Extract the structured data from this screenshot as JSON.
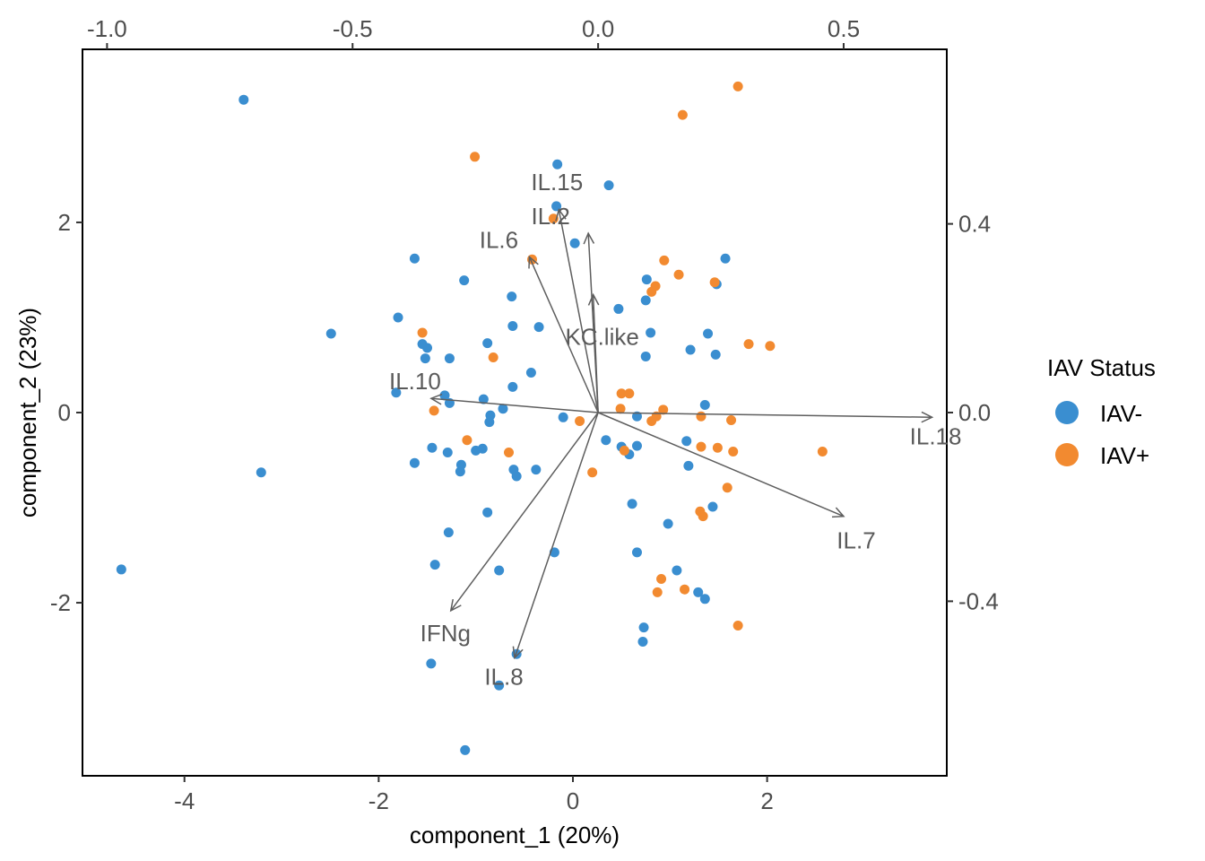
{
  "chart_data": {
    "type": "scatter",
    "xlabel": "component_1   (20%)",
    "ylabel": "component_2   (23%)",
    "xlim": [
      -5.05,
      3.85
    ],
    "ylim": [
      -3.82,
      3.82
    ],
    "x_ticks": [
      -4,
      -2,
      0,
      2
    ],
    "y_ticks": [
      -2,
      0,
      2
    ],
    "top_axis": {
      "xlim": [
        -1.05,
        0.71
      ],
      "ticks": [
        -1.0,
        -0.5,
        0.0,
        0.5
      ],
      "tick_labels": [
        "-1.0",
        "-0.5",
        "0.0",
        "0.5"
      ]
    },
    "right_axis": {
      "ylim": [
        -0.77,
        0.77
      ],
      "ticks": [
        -0.4,
        0.0,
        0.4
      ],
      "tick_labels": [
        "-0.4",
        "0.0",
        "0.4"
      ]
    },
    "grid": false,
    "legend": {
      "title": "IAV Status",
      "position": "right",
      "entries": [
        {
          "label": "IAV-",
          "color": "#3a8ed0"
        },
        {
          "label": "IAV+",
          "color": "#f28a30"
        }
      ]
    },
    "series": [
      {
        "name": "IAV-",
        "color": "#3a8ed0",
        "points": [
          [
            -3.39,
            3.29
          ],
          [
            -4.65,
            -1.65
          ],
          [
            -3.21,
            -0.63
          ],
          [
            -2.49,
            0.83
          ],
          [
            -1.8,
            1.0
          ],
          [
            -1.63,
            1.62
          ],
          [
            -1.55,
            0.72
          ],
          [
            -1.5,
            0.68
          ],
          [
            -1.52,
            0.57
          ],
          [
            -1.27,
            0.57
          ],
          [
            -1.82,
            0.21
          ],
          [
            -1.32,
            0.18
          ],
          [
            -1.27,
            0.1
          ],
          [
            -1.12,
            1.39
          ],
          [
            -0.88,
            0.73
          ],
          [
            -0.63,
            1.22
          ],
          [
            -0.62,
            0.91
          ],
          [
            -0.35,
            0.9
          ],
          [
            -0.92,
            0.14
          ],
          [
            -0.62,
            0.27
          ],
          [
            -0.43,
            0.42
          ],
          [
            -0.85,
            -0.03
          ],
          [
            -0.72,
            0.04
          ],
          [
            -0.86,
            -0.1
          ],
          [
            -1.63,
            -0.53
          ],
          [
            -1.45,
            -0.37
          ],
          [
            -1.29,
            -0.42
          ],
          [
            -1.15,
            -0.55
          ],
          [
            -1.16,
            -0.62
          ],
          [
            -1.0,
            -0.4
          ],
          [
            -0.93,
            -0.38
          ],
          [
            -0.61,
            -0.6
          ],
          [
            -0.58,
            -0.67
          ],
          [
            -0.38,
            -0.6
          ],
          [
            -0.88,
            -1.05
          ],
          [
            -1.28,
            -1.26
          ],
          [
            -1.42,
            -1.6
          ],
          [
            -0.76,
            -1.66
          ],
          [
            -0.19,
            -1.47
          ],
          [
            -1.46,
            -2.64
          ],
          [
            -0.58,
            -2.54
          ],
          [
            -0.76,
            -2.87
          ],
          [
            -1.11,
            -3.55
          ],
          [
            -0.16,
            2.61
          ],
          [
            -0.17,
            2.17
          ],
          [
            0.02,
            1.78
          ],
          [
            0.37,
            2.39
          ],
          [
            0.47,
            1.09
          ],
          [
            0.76,
            1.4
          ],
          [
            0.75,
            1.18
          ],
          [
            0.8,
            0.84
          ],
          [
            0.75,
            0.59
          ],
          [
            1.21,
            0.66
          ],
          [
            1.39,
            0.83
          ],
          [
            1.57,
            1.62
          ],
          [
            1.48,
            1.35
          ],
          [
            1.47,
            0.61
          ],
          [
            1.36,
            0.08
          ],
          [
            -0.1,
            -0.05
          ],
          [
            0.34,
            -0.29
          ],
          [
            0.5,
            -0.36
          ],
          [
            0.58,
            -0.44
          ],
          [
            0.66,
            -0.35
          ],
          [
            0.66,
            -0.04
          ],
          [
            1.17,
            -0.3
          ],
          [
            1.19,
            -0.56
          ],
          [
            1.44,
            -0.99
          ],
          [
            0.61,
            -0.96
          ],
          [
            0.66,
            -1.47
          ],
          [
            0.98,
            -1.17
          ],
          [
            1.07,
            -1.66
          ],
          [
            1.29,
            -1.89
          ],
          [
            1.36,
            -1.96
          ],
          [
            0.73,
            -2.26
          ],
          [
            0.72,
            -2.41
          ]
        ]
      },
      {
        "name": "IAV+",
        "color": "#f28a30",
        "points": [
          [
            -1.01,
            2.69
          ],
          [
            -0.2,
            2.04
          ],
          [
            -0.42,
            1.61
          ],
          [
            -1.55,
            0.84
          ],
          [
            -0.82,
            0.58
          ],
          [
            -1.43,
            0.02
          ],
          [
            -1.09,
            -0.29
          ],
          [
            -0.66,
            -0.42
          ],
          [
            1.13,
            3.13
          ],
          [
            1.7,
            3.43
          ],
          [
            0.94,
            1.6
          ],
          [
            1.09,
            1.45
          ],
          [
            0.85,
            1.33
          ],
          [
            0.81,
            1.27
          ],
          [
            1.46,
            1.37
          ],
          [
            1.81,
            0.72
          ],
          [
            2.03,
            0.7
          ],
          [
            0.5,
            0.2
          ],
          [
            0.58,
            0.2
          ],
          [
            0.49,
            0.04
          ],
          [
            0.93,
            0.03
          ],
          [
            0.86,
            -0.04
          ],
          [
            0.81,
            -0.09
          ],
          [
            1.32,
            -0.04
          ],
          [
            1.63,
            -0.08
          ],
          [
            0.07,
            -0.09
          ],
          [
            0.2,
            -0.63
          ],
          [
            0.53,
            -0.4
          ],
          [
            1.32,
            -0.36
          ],
          [
            1.49,
            -0.37
          ],
          [
            1.65,
            -0.41
          ],
          [
            1.59,
            -0.79
          ],
          [
            2.57,
            -0.41
          ],
          [
            1.31,
            -1.04
          ],
          [
            1.34,
            -1.09
          ],
          [
            0.91,
            -1.75
          ],
          [
            0.87,
            -1.89
          ],
          [
            1.15,
            -1.86
          ],
          [
            1.7,
            -2.24
          ]
        ]
      }
    ],
    "loadings": [
      {
        "label": "IL.15",
        "x": -0.08,
        "y": 0.43
      },
      {
        "label": "IL.2",
        "x": -0.02,
        "y": 0.38
      },
      {
        "label": "IL.6",
        "x": -0.14,
        "y": 0.33
      },
      {
        "label": "KC.like",
        "x": -0.01,
        "y": 0.25
      },
      {
        "label": "IL.10",
        "x": -0.34,
        "y": 0.03
      },
      {
        "label": "IL.18",
        "x": 0.68,
        "y": -0.01
      },
      {
        "label": "IL.7",
        "x": 0.5,
        "y": -0.22
      },
      {
        "label": "IFNg",
        "x": -0.3,
        "y": -0.42
      },
      {
        "label": "IL.8",
        "x": -0.17,
        "y": -0.52
      }
    ]
  }
}
